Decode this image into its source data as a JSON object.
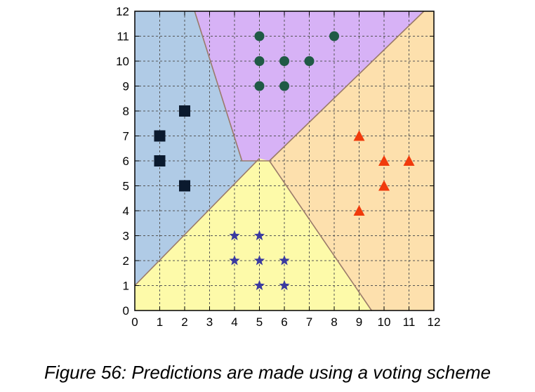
{
  "caption": "Figure 56: Predictions are made using a voting scheme",
  "chart_data": {
    "type": "scatter",
    "title": "",
    "xlabel": "",
    "ylabel": "",
    "xlim": [
      0,
      12
    ],
    "ylim": [
      0,
      12
    ],
    "grid": true,
    "x_ticks": [
      0,
      1,
      2,
      3,
      4,
      5,
      6,
      7,
      8,
      9,
      10,
      11,
      12
    ],
    "y_ticks": [
      0,
      1,
      2,
      3,
      4,
      5,
      6,
      7,
      8,
      9,
      10,
      11,
      12
    ],
    "regions": [
      {
        "name": "squares-region",
        "color": "#b0cbe6",
        "polygon": [
          [
            0,
            12
          ],
          [
            2.4,
            12
          ],
          [
            4.3,
            6
          ],
          [
            5,
            6.1
          ],
          [
            0,
            1
          ]
        ]
      },
      {
        "name": "circles-region",
        "color": "#d7b2f6",
        "polygon": [
          [
            2.4,
            12
          ],
          [
            11.6,
            12
          ],
          [
            5.4,
            6
          ],
          [
            4.3,
            6
          ]
        ]
      },
      {
        "name": "triangles-region",
        "color": "#fde0ad",
        "polygon": [
          [
            11.6,
            12
          ],
          [
            12,
            12
          ],
          [
            12,
            0
          ],
          [
            9.5,
            0
          ],
          [
            5.4,
            6
          ]
        ]
      },
      {
        "name": "stars-region",
        "color": "#fdfaa9",
        "polygon": [
          [
            0,
            0
          ],
          [
            0,
            1
          ],
          [
            5,
            6.1
          ],
          [
            5.4,
            6
          ],
          [
            9.5,
            0
          ]
        ]
      }
    ],
    "series": [
      {
        "marker": "square",
        "color": "#0b1a2e",
        "points": [
          [
            1,
            7
          ],
          [
            1,
            6
          ],
          [
            2,
            8
          ],
          [
            2,
            5
          ]
        ]
      },
      {
        "marker": "circle",
        "color": "#1f5a45",
        "points": [
          [
            5,
            11
          ],
          [
            8,
            11
          ],
          [
            5,
            10
          ],
          [
            6,
            10
          ],
          [
            7,
            10
          ],
          [
            5,
            9
          ],
          [
            6,
            9
          ]
        ]
      },
      {
        "marker": "triangle",
        "color": "#f03a0c",
        "points": [
          [
            9,
            7
          ],
          [
            10,
            6
          ],
          [
            11,
            6
          ],
          [
            10,
            5
          ],
          [
            9,
            4
          ]
        ]
      },
      {
        "marker": "star",
        "color": "#3a3aa0",
        "points": [
          [
            4,
            3
          ],
          [
            5,
            3
          ],
          [
            4,
            2
          ],
          [
            5,
            2
          ],
          [
            6,
            2
          ],
          [
            5,
            1
          ],
          [
            6,
            1
          ]
        ]
      }
    ]
  }
}
